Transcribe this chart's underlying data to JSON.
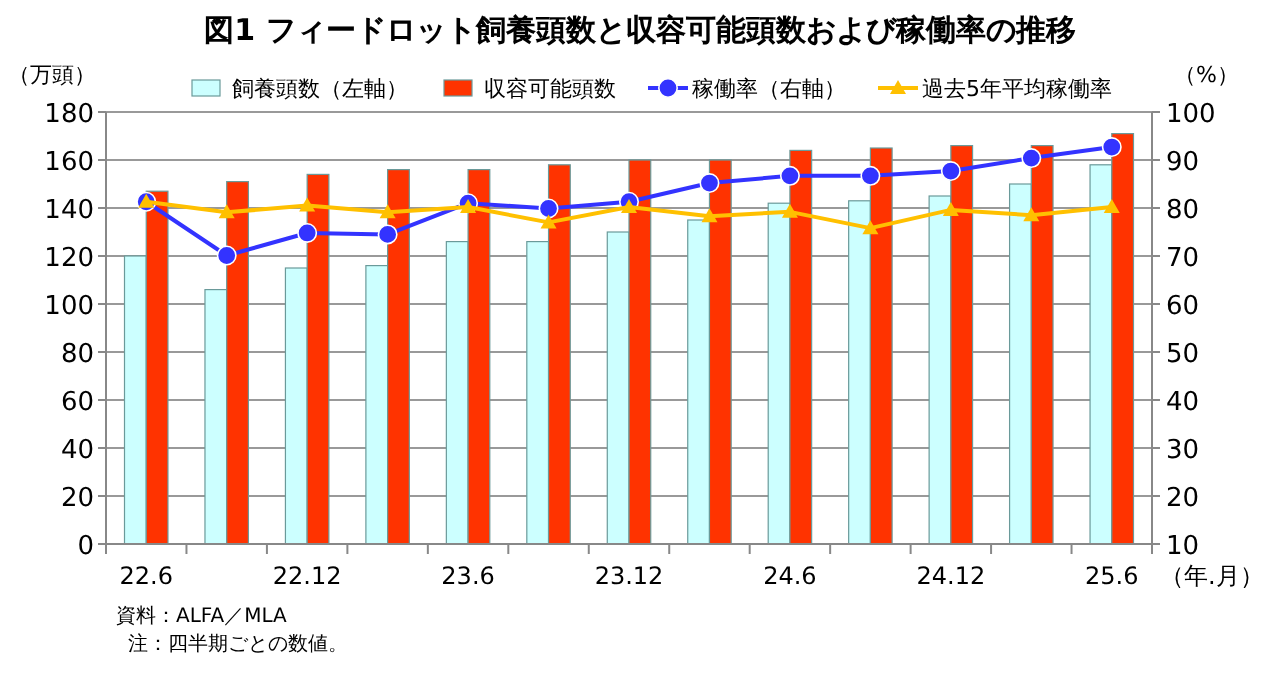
{
  "chart_data": {
    "type": "bar",
    "title": "図1 フィードロット飼養頭数と収容可能頭数および稼働率の推移",
    "ylabel": "（万頭）",
    "y2label": "（%）",
    "xlabel": "（年.月）",
    "annotations": [
      "資料：ALFA／MLA",
      "注：四半期ごとの数値。"
    ],
    "categories": [
      "22.6",
      null,
      "22.12",
      null,
      "23.6",
      null,
      "23.12",
      null,
      "24.6",
      null,
      "24.12",
      null,
      "25.6"
    ],
    "series": [
      {
        "name": "飼養頭数（左軸）",
        "color": "#ccffff",
        "values": [
          120,
          106,
          115,
          116,
          126,
          126,
          130,
          135,
          142,
          143,
          145,
          150,
          158
        ]
      },
      {
        "name": "収容可能頭数",
        "color": "#ff3300",
        "values": [
          147,
          151,
          154,
          156,
          156,
          158,
          160,
          160,
          164,
          165,
          166,
          166,
          171
        ]
      },
      {
        "name": "稼働率（右軸）",
        "type": "line",
        "axis": "y2",
        "marker": "circle",
        "color": "#3333ff",
        "values": [
          81.3,
          70.1,
          74.8,
          74.5,
          81.0,
          79.9,
          81.3,
          85.2,
          86.7,
          86.7,
          87.7,
          90.4,
          92.7
        ]
      },
      {
        "name": "過去5年平均稼働率",
        "type": "line",
        "axis": "y2",
        "marker": "triangle",
        "color": "#ffc000",
        "values": [
          81.3,
          79.1,
          80.5,
          79.1,
          80.2,
          77.0,
          80.2,
          78.3,
          79.2,
          75.8,
          79.6,
          78.5,
          80.2
        ]
      }
    ],
    "ylim": [
      0,
      180
    ],
    "yticks": [
      0,
      20,
      40,
      60,
      80,
      100,
      120,
      140,
      160,
      180
    ],
    "y2lim": [
      10,
      100
    ],
    "y2ticks": [
      10,
      20,
      30,
      40,
      50,
      60,
      70,
      80,
      90,
      100
    ],
    "grid": "y",
    "legend": "top"
  }
}
